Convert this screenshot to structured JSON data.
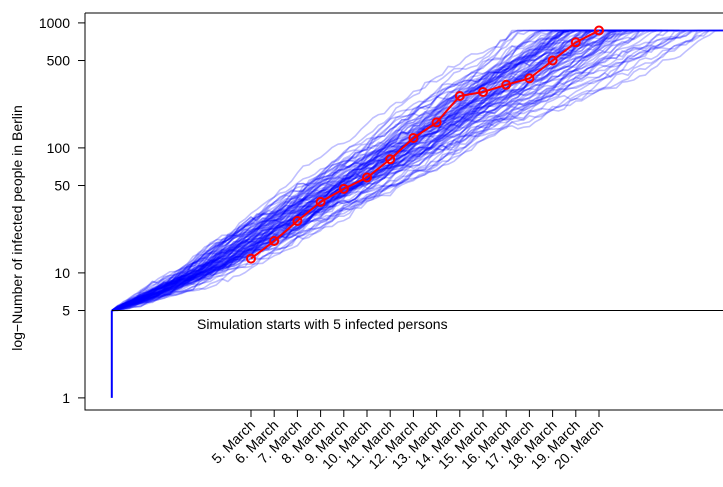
{
  "chart_data": {
    "type": "line",
    "title": "",
    "ylabel": "log−Number of infected people in Berlin",
    "xlabel": "",
    "yscale": "log",
    "ylim": [
      0.8,
      1200
    ],
    "yticks": [
      1,
      5,
      10,
      50,
      100,
      500,
      1000
    ],
    "ytick_labels": [
      "1",
      "5",
      "10",
      "50",
      "100",
      "500",
      "1000"
    ],
    "x": [
      "5. March",
      "6. March",
      "7. March",
      "8. March",
      "9. March",
      "10. March",
      "11. March",
      "12. March",
      "13. March",
      "14. March",
      "15. March",
      "16. March",
      "17. March",
      "18. March",
      "19. March",
      "20. March"
    ],
    "observed": {
      "color": "#ff0000",
      "values": [
        13,
        18,
        26,
        37,
        47,
        58,
        81,
        120,
        160,
        260,
        280,
        320,
        360,
        500,
        700,
        870
      ]
    },
    "simulation": {
      "color": "#0000ff",
      "count": 100,
      "start_value": 5,
      "seed_value": 1
    },
    "reference_line": {
      "value": 5,
      "color": "#000000"
    },
    "annotation": "Simulation starts with 5 infected persons",
    "grid": false,
    "legend": "none"
  }
}
